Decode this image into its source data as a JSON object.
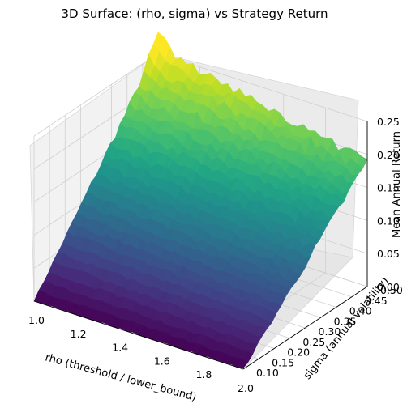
{
  "chart_data": {
    "type": "surface3d",
    "title": "3D Surface: (rho, sigma) vs Strategy Return",
    "xlabel": "rho (threshold / lower_bound)",
    "ylabel": "sigma (annual volatility)",
    "zlabel": "Mean Annual Return",
    "colormap": "viridis",
    "grid": true,
    "xlim": [
      1.0,
      2.0
    ],
    "ylim": [
      0.1,
      0.5
    ],
    "zlim": [
      0.0,
      0.25
    ],
    "x_ticks": [
      "1.0",
      "1.2",
      "1.4",
      "1.6",
      "1.8",
      "2.0"
    ],
    "y_ticks": [
      "0.10",
      "0.15",
      "0.20",
      "0.25",
      "0.30",
      "0.35",
      "0.40",
      "0.45",
      "0.50"
    ],
    "z_ticks": [
      "0.00",
      "0.05",
      "0.10",
      "0.15",
      "0.20",
      "0.25"
    ],
    "surface_samples": [
      {
        "rho": 1.0,
        "sigma": 0.1,
        "return": 0.0
      },
      {
        "rho": 1.0,
        "sigma": 0.5,
        "return": 0.26
      },
      {
        "rho": 2.0,
        "sigma": 0.1,
        "return": 0.0
      },
      {
        "rho": 2.0,
        "sigma": 0.5,
        "return": 0.19
      }
    ]
  }
}
